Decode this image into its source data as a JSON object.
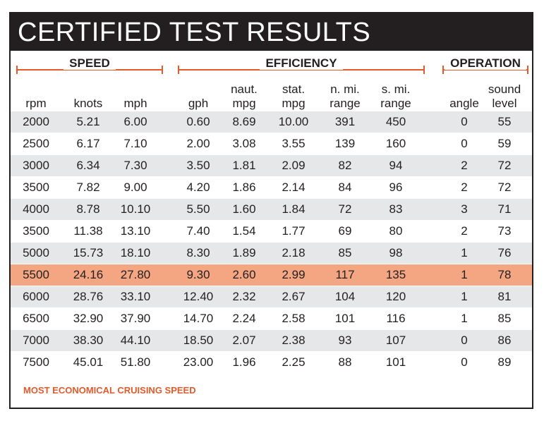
{
  "title": "CERTIFIED TEST RESULTS",
  "groups": {
    "speed": "SPEED",
    "efficiency": "EFFICIENCY",
    "operation": "OPERATION"
  },
  "columns": {
    "rpm": [
      "rpm"
    ],
    "knots": [
      "knots"
    ],
    "mph": [
      "mph"
    ],
    "gph": [
      "gph"
    ],
    "naut_mpg": [
      "naut.",
      "mpg"
    ],
    "stat_mpg": [
      "stat.",
      "mpg"
    ],
    "nmi_range": [
      "n. mi.",
      "range"
    ],
    "smi_range": [
      "s. mi.",
      "range"
    ],
    "angle": [
      "angle"
    ],
    "sound_level": [
      "sound",
      "level"
    ]
  },
  "rows": [
    [
      "2000",
      "5.21",
      "6.00",
      "0.60",
      "8.69",
      "10.00",
      "391",
      "450",
      "0",
      "55"
    ],
    [
      "2500",
      "6.17",
      "7.10",
      "2.00",
      "3.08",
      "3.55",
      "139",
      "160",
      "0",
      "59"
    ],
    [
      "3000",
      "6.34",
      "7.30",
      "3.50",
      "1.81",
      "2.09",
      "82",
      "94",
      "2",
      "72"
    ],
    [
      "3500",
      "7.82",
      "9.00",
      "4.20",
      "1.86",
      "2.14",
      "84",
      "96",
      "2",
      "72"
    ],
    [
      "4000",
      "8.78",
      "10.10",
      "5.50",
      "1.60",
      "1.84",
      "72",
      "83",
      "3",
      "71"
    ],
    [
      "3500",
      "11.38",
      "13.10",
      "7.40",
      "1.54",
      "1.77",
      "69",
      "80",
      "2",
      "73"
    ],
    [
      "5000",
      "15.73",
      "18.10",
      "8.30",
      "1.89",
      "2.18",
      "85",
      "98",
      "1",
      "76"
    ],
    [
      "5500",
      "24.16",
      "27.80",
      "9.30",
      "2.60",
      "2.99",
      "117",
      "135",
      "1",
      "78"
    ],
    [
      "6000",
      "28.76",
      "33.10",
      "12.40",
      "2.32",
      "2.67",
      "104",
      "120",
      "1",
      "81"
    ],
    [
      "6500",
      "32.90",
      "37.90",
      "14.70",
      "2.24",
      "2.58",
      "101",
      "116",
      "1",
      "85"
    ],
    [
      "7000",
      "38.30",
      "44.10",
      "18.50",
      "2.07",
      "2.38",
      "93",
      "107",
      "0",
      "86"
    ],
    [
      "7500",
      "45.01",
      "51.80",
      "23.00",
      "1.96",
      "2.25",
      "88",
      "101",
      "0",
      "89"
    ]
  ],
  "highlighted_row_index": 7,
  "footnote": "MOST ECONOMICAL CRUISING SPEED",
  "colors": {
    "title_bar": "#231f20",
    "accent": "#e35a2b",
    "highlight_row": "#f4a582",
    "alt_row": "#e6e7e8"
  }
}
